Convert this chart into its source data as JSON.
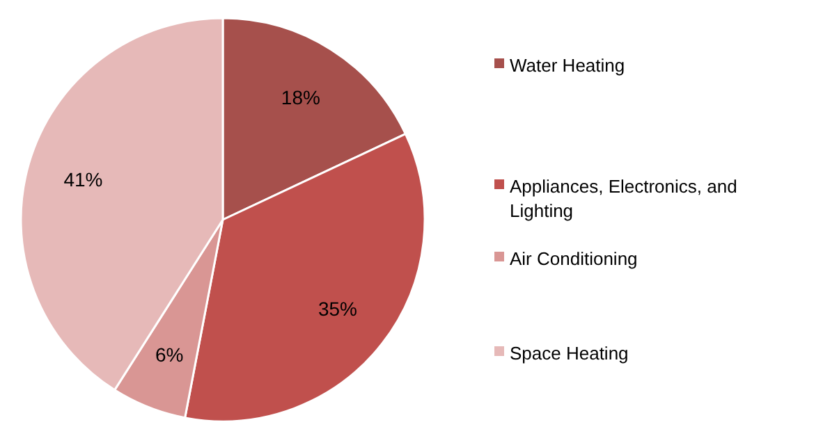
{
  "chart_data": {
    "type": "pie",
    "categories": [
      "Water Heating",
      "Appliances, Electronics, and Lighting",
      "Air Conditioning",
      "Space Heating"
    ],
    "values": [
      18,
      35,
      6,
      41
    ],
    "colors": [
      "#a6504c",
      "#c0504d",
      "#d99694",
      "#e6b9b8"
    ],
    "value_labels": [
      "18%",
      "35%",
      "6%",
      "41%"
    ],
    "legend": "right"
  }
}
